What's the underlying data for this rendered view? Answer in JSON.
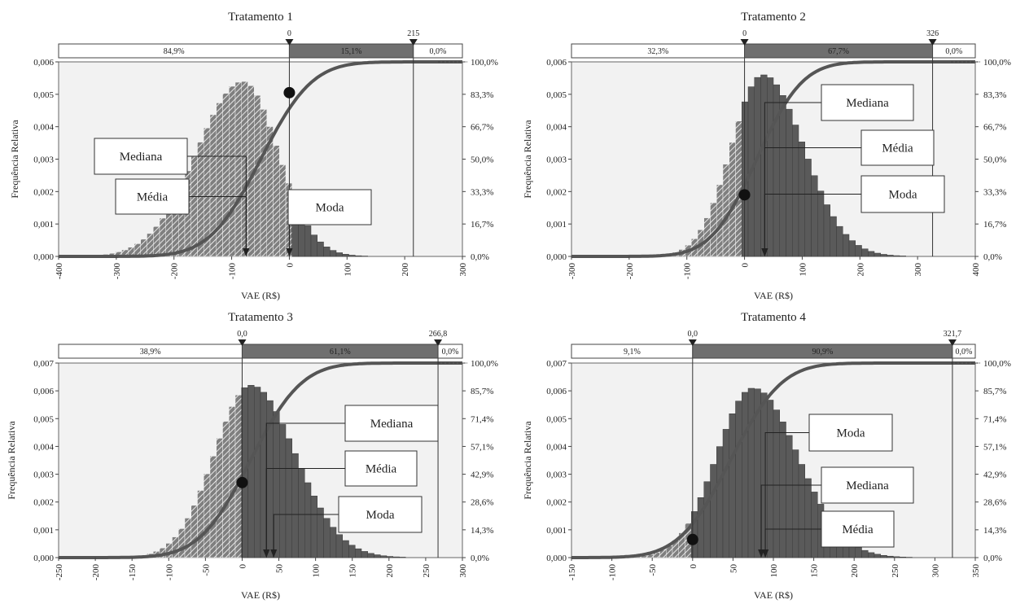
{
  "chart_data": [
    {
      "type": "bar",
      "title": "Tratamento 1",
      "xlabel": "VAE (R$)",
      "ylabel": "Frequência Relativa",
      "xlim": [
        -400,
        300
      ],
      "xticks": [
        "-400",
        "-300",
        "-200",
        "-100",
        "0",
        "100",
        "200",
        "300"
      ],
      "ylim": [
        0,
        0.006
      ],
      "yticks": [
        "0,000",
        "0,001",
        "0,002",
        "0,003",
        "0,004",
        "0,005",
        "0,006"
      ],
      "y2ticks": [
        "0,0%",
        "16,7%",
        "33,3%",
        "50,0%",
        "66,7%",
        "83,3%",
        "100,0%"
      ],
      "distribution": {
        "peak_x": -80,
        "peak_y": 0.0054,
        "sd_left": 80,
        "sd_right": 60
      },
      "markers": [
        {
          "value": 0,
          "label": "0"
        },
        {
          "value": 215,
          "label": "215"
        }
      ],
      "bands": [
        "84,9%",
        "15,1%",
        "0,0%"
      ],
      "cdf_point": {
        "x": 0,
        "y": 0.00505
      },
      "annotations": [
        {
          "label": "Mediana",
          "target": -75
        },
        {
          "label": "Média",
          "target": -75
        },
        {
          "label": "Moda",
          "target": 0
        }
      ]
    },
    {
      "type": "bar",
      "title": "Tratamento 2",
      "xlabel": "VAE (R$)",
      "ylabel": "Frequência Relativa",
      "xlim": [
        -300,
        400
      ],
      "xticks": [
        "-300",
        "-200",
        "-100",
        "0",
        "100",
        "200",
        "300",
        "400"
      ],
      "ylim": [
        0,
        0.006
      ],
      "yticks": [
        "0,000",
        "0,001",
        "0,002",
        "0,003",
        "0,004",
        "0,005",
        "0,006"
      ],
      "y2ticks": [
        "0,0%",
        "16,7%",
        "33,3%",
        "50,0%",
        "66,7%",
        "83,3%",
        "100,0%"
      ],
      "distribution": {
        "peak_x": 32,
        "peak_y": 0.0056,
        "sd_left": 55,
        "sd_right": 70
      },
      "markers": [
        {
          "value": 0,
          "label": "0"
        },
        {
          "value": 326,
          "label": "326"
        }
      ],
      "bands": [
        "32,3%",
        "67,7%",
        "0,0%"
      ],
      "cdf_point": {
        "x": 0,
        "y": 0.0019
      },
      "annotations": [
        {
          "label": "Mediana",
          "target": 35
        },
        {
          "label": "Média",
          "target": 35
        },
        {
          "label": "Moda",
          "target": 35
        }
      ]
    },
    {
      "type": "bar",
      "title": "Tratamento 3",
      "xlabel": "VAE (R$)",
      "ylabel": "Frequência Relativa",
      "xlim": [
        -250,
        300
      ],
      "xticks": [
        "-250",
        "-200",
        "-150",
        "-100",
        "-50",
        "0",
        "50",
        "100",
        "150",
        "200",
        "250",
        "300"
      ],
      "ylim": [
        0,
        0.007
      ],
      "yticks": [
        "0,000",
        "0,001",
        "0,002",
        "0,003",
        "0,004",
        "0,005",
        "0,006",
        "0,007"
      ],
      "y2ticks": [
        "0,0%",
        "14,3%",
        "28,6%",
        "42,9%",
        "57,1%",
        "71,4%",
        "85,7%",
        "100,0%"
      ],
      "distribution": {
        "peak_x": 12,
        "peak_y": 0.0062,
        "sd_left": 50,
        "sd_right": 60
      },
      "markers": [
        {
          "value": 0,
          "label": "0,0"
        },
        {
          "value": 266.8,
          "label": "266,8"
        }
      ],
      "bands": [
        "38,9%",
        "61,1%",
        "0,0%"
      ],
      "cdf_point": {
        "x": 0,
        "y": 0.0027
      },
      "annotations": [
        {
          "label": "Mediana",
          "target": 33
        },
        {
          "label": "Média",
          "target": 33
        },
        {
          "label": "Moda",
          "target": 43
        }
      ]
    },
    {
      "type": "bar",
      "title": "Tratamento 4",
      "xlabel": "VAE (R$)",
      "ylabel": "Frequência Relativa",
      "xlim": [
        -150,
        350
      ],
      "xticks": [
        "-150",
        "-100",
        "-50",
        "0",
        "50",
        "100",
        "150",
        "200",
        "250",
        "300",
        "350"
      ],
      "ylim": [
        0,
        0.007
      ],
      "yticks": [
        "0,000",
        "0,001",
        "0,002",
        "0,003",
        "0,004",
        "0,005",
        "0,006",
        "0,007"
      ],
      "y2ticks": [
        "0,0%",
        "14,3%",
        "28,6%",
        "42,9%",
        "57,1%",
        "71,4%",
        "85,7%",
        "100,0%"
      ],
      "distribution": {
        "peak_x": 75,
        "peak_y": 0.0061,
        "sd_left": 45,
        "sd_right": 55
      },
      "markers": [
        {
          "value": 0,
          "label": "0,0"
        },
        {
          "value": 321.7,
          "label": "321,7"
        }
      ],
      "bands": [
        "9,1%",
        "90,9%",
        "0,0%"
      ],
      "cdf_point": {
        "x": 0,
        "y": 0.00065
      },
      "annotations": [
        {
          "label": "Moda",
          "target": 90
        },
        {
          "label": "Mediana",
          "target": 85
        },
        {
          "label": "Média",
          "target": 90
        }
      ]
    }
  ]
}
